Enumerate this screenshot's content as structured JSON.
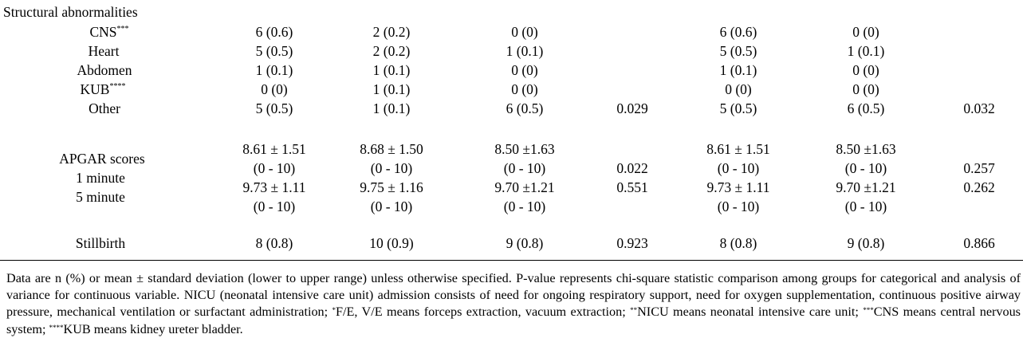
{
  "section_title": "Structural abnormalities",
  "rows": [
    {
      "label": "CNS",
      "sup": "***",
      "cells": [
        "6 (0.6)",
        "2 (0.2)",
        "0 (0)",
        "",
        "6 (0.6)",
        "0 (0)",
        ""
      ]
    },
    {
      "label": "Heart",
      "sup": "",
      "cells": [
        "5 (0.5)",
        "2 (0.2)",
        "1 (0.1)",
        "",
        "5 (0.5)",
        "1 (0.1)",
        ""
      ]
    },
    {
      "label": "Abdomen",
      "sup": "",
      "cells": [
        "1 (0.1)",
        "1 (0.1)",
        "0 (0)",
        "",
        "1 (0.1)",
        "0 (0)",
        ""
      ]
    },
    {
      "label": "KUB",
      "sup": "****",
      "cells": [
        "0 (0)",
        "1 (0.1)",
        "0 (0)",
        "",
        "0 (0)",
        "0 (0)",
        ""
      ]
    },
    {
      "label": "Other",
      "sup": "",
      "cells": [
        "5 (0.5)",
        "1 (0.1)",
        "6 (0.5)",
        "0.029",
        "5 (0.5)",
        "6 (0.5)",
        "0.032"
      ]
    }
  ],
  "apgar": {
    "title": "APGAR scores",
    "min1_label": "1 minute",
    "min5_label": "5 minute",
    "min1_mean": [
      "8.61 ± 1.51",
      "8.68 ± 1.50",
      "8.50 ±1.63",
      "",
      "8.61 ± 1.51",
      "8.50 ±1.63",
      ""
    ],
    "min1_range": [
      "(0 - 10)",
      "(0 - 10)",
      "(0 - 10)",
      "0.022",
      "(0 - 10)",
      "(0 - 10)",
      "0.257"
    ],
    "min5_mean": [
      "9.73 ± 1.11",
      "9.75 ± 1.16",
      "9.70 ±1.21",
      "0.551",
      "9.73 ± 1.11",
      "9.70 ±1.21",
      "0.262"
    ],
    "min5_range": [
      "(0 - 10)",
      "(0 - 10)",
      "(0 - 10)",
      "",
      "(0 - 10)",
      "(0 - 10)",
      ""
    ]
  },
  "stillbirth": {
    "label": "Stillbirth",
    "cells": [
      "8 (0.8)",
      "10 (0.9)",
      "9 (0.8)",
      "0.923",
      "8 (0.8)",
      "9 (0.8)",
      "0.866"
    ]
  },
  "footnote": {
    "p1": "Data are n (%) or mean ± standard deviation (lower to upper range) unless otherwise specified. P-value represents chi-square statistic comparison among groups for categorical and analysis of variance for continuous variable. NICU (neonatal intensive care unit) admission consists of need for ongoing respiratory support, need for oxygen supplementation, continuous positive airway pressure, mechanical ventilation or surfactant administration; ",
    "s1": "*",
    "p2": "F/E, V/E means forceps extraction, vacuum extraction; ",
    "s2": "**",
    "p3": "NICU means neonatal intensive care unit; ",
    "s3": "***",
    "p4": "CNS means central nervous system; ",
    "s4": "****",
    "p5": "KUB means kidney ureter bladder."
  }
}
